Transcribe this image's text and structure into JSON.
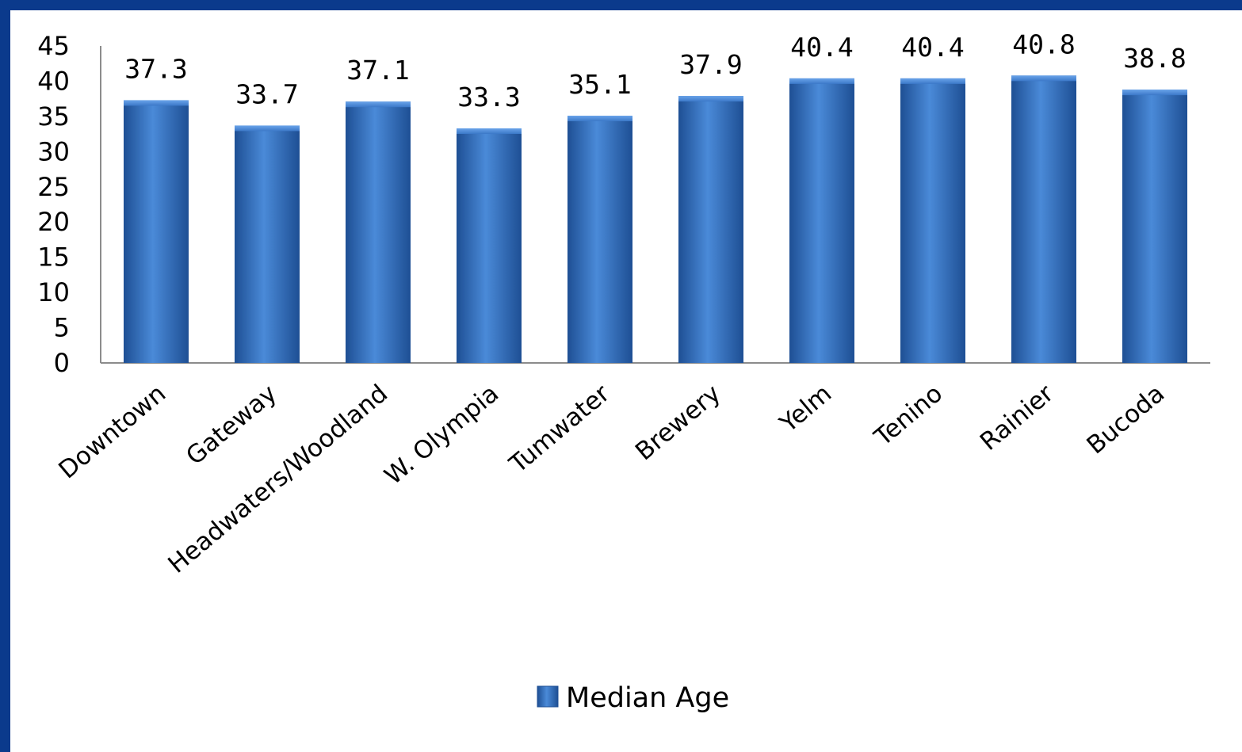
{
  "chart_data": {
    "type": "bar",
    "categories": [
      "Downtown",
      "Gateway",
      "Headwaters/Woodland",
      "W. Olympia",
      "Tumwater",
      "Brewery",
      "Yelm",
      "Tenino",
      "Rainier",
      "Bucoda"
    ],
    "series": [
      {
        "name": "Median Age",
        "values": [
          37.3,
          33.7,
          37.1,
          33.3,
          35.1,
          37.9,
          40.4,
          40.4,
          40.8,
          38.8
        ]
      }
    ],
    "data_labels": [
      "37.3",
      "33.7",
      "37.1",
      "33.3",
      "35.1",
      "37.9",
      "40.4",
      "40.4",
      "40.8",
      "38.8"
    ],
    "y_ticks": [
      "0",
      "5",
      "10",
      "15",
      "20",
      "25",
      "30",
      "35",
      "40",
      "45"
    ],
    "ylim": [
      0,
      45
    ],
    "legend_position": "bottom",
    "grid": false,
    "colors": {
      "bar": "#3b78c8",
      "bar_dark": "#1e4f94",
      "background": "#0b3a8c",
      "panel": "#ffffff"
    }
  }
}
